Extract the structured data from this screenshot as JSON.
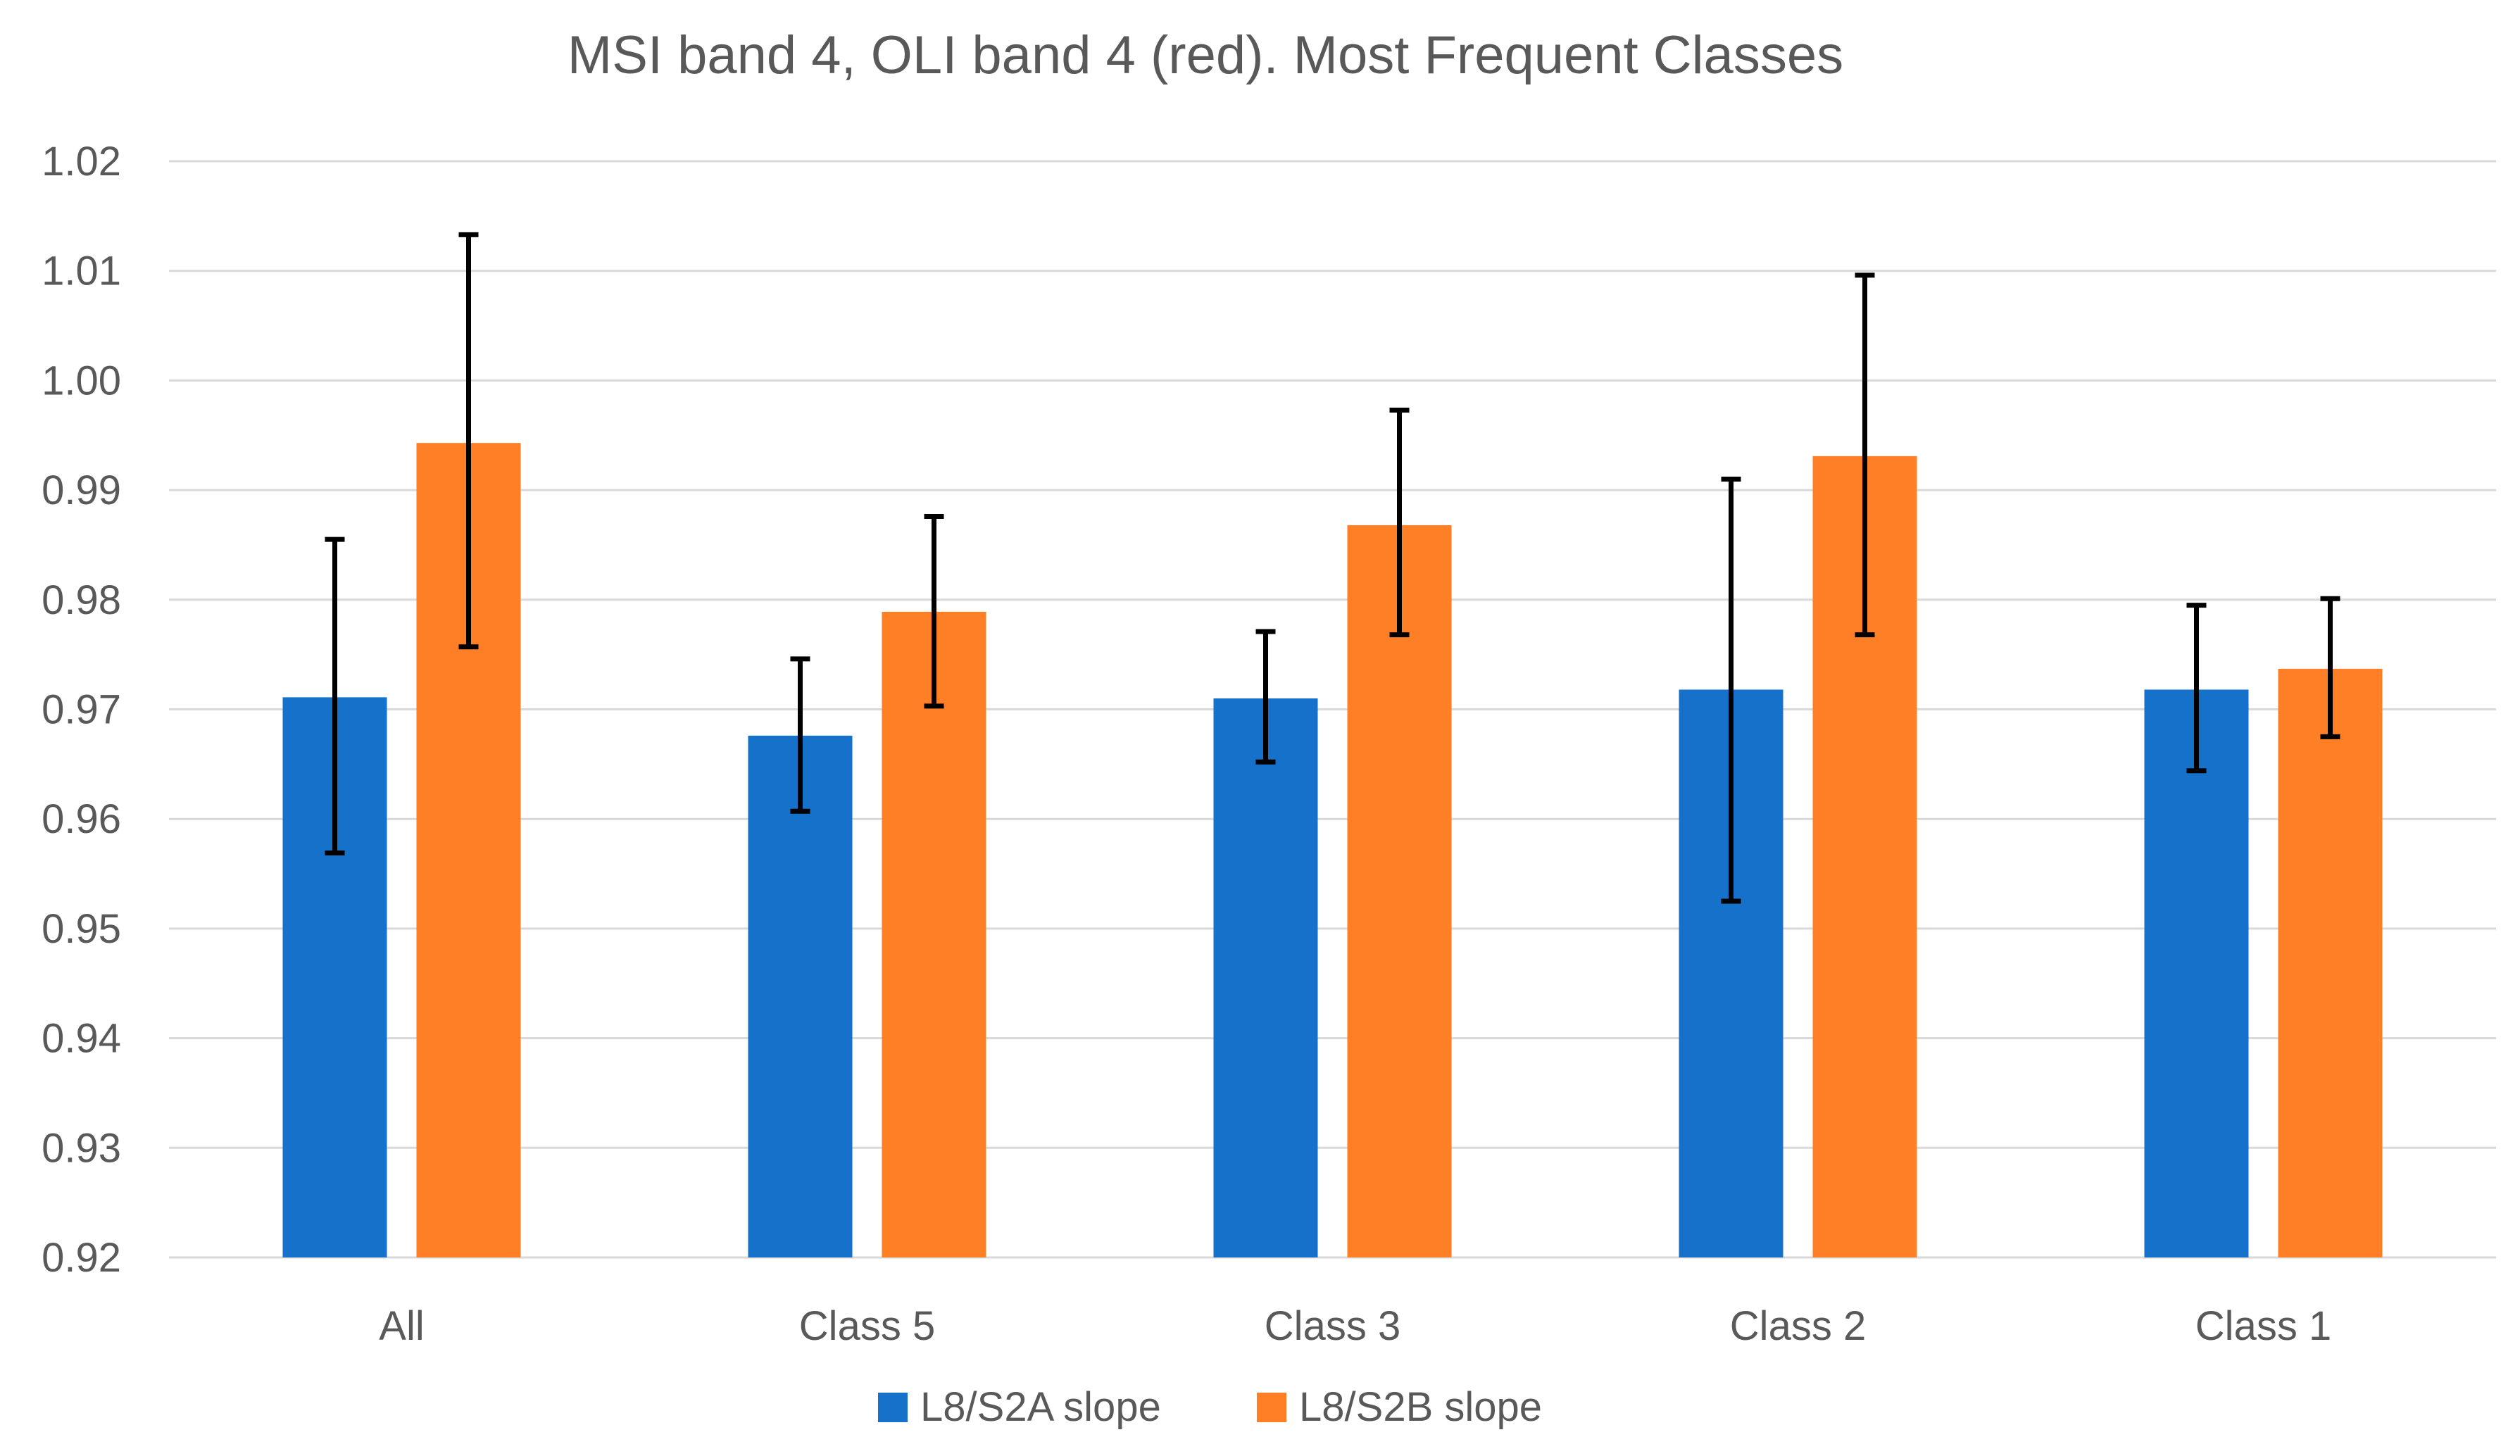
{
  "chart_data": {
    "type": "bar",
    "title": "MSI band 4, OLI band 4 (red). Most Frequent Classes",
    "xlabel": "",
    "ylabel": "",
    "categories": [
      "All",
      "Class 5",
      "Class 3",
      "Class 2",
      "Class 1"
    ],
    "ylim": [
      0.92,
      1.02
    ],
    "yticks": [
      0.92,
      0.93,
      0.94,
      0.95,
      0.96,
      0.97,
      0.98,
      0.99,
      1.0,
      1.01,
      1.02
    ],
    "ytick_labels": [
      "0.92",
      "0.93",
      "0.94",
      "0.95",
      "0.96",
      "0.97",
      "0.98",
      "0.99",
      "1.00",
      "1.01",
      "1.02"
    ],
    "grid": true,
    "legend_position": "bottom",
    "series": [
      {
        "name": "L8/S2A slope",
        "color": "#1571C9",
        "values": [
          0.9711,
          0.9676,
          0.971,
          0.9718,
          0.9718
        ],
        "err_low": [
          0.9569,
          0.9607,
          0.9652,
          0.9525,
          0.9644
        ],
        "err_high": [
          0.9855,
          0.9746,
          0.9771,
          0.991,
          0.9795
        ]
      },
      {
        "name": "L8/S2B slope",
        "color": "#FF7F27",
        "values": [
          0.9943,
          0.9789,
          0.9868,
          0.9931,
          0.9737
        ],
        "err_low": [
          0.9757,
          0.9703,
          0.9768,
          0.9768,
          0.9675
        ],
        "err_high": [
          1.0133,
          0.9876,
          0.9973,
          1.0096,
          0.9801
        ]
      }
    ]
  }
}
